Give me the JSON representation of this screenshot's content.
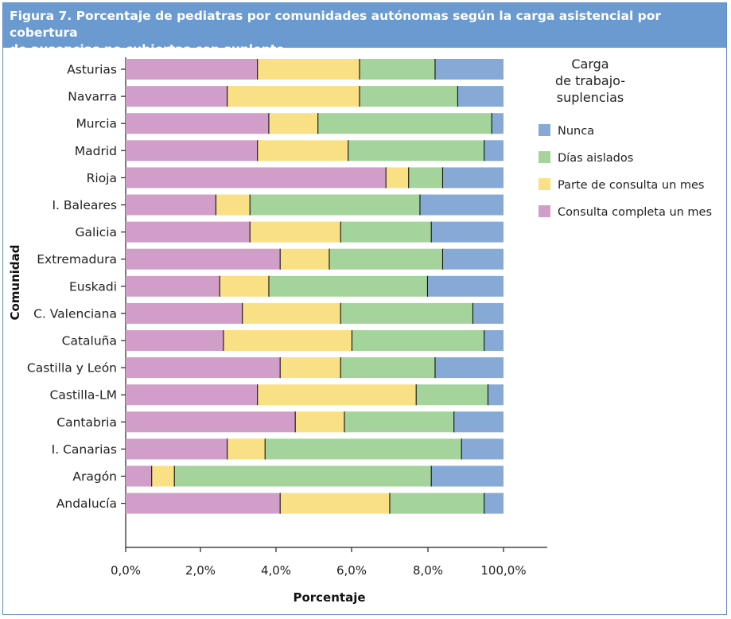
{
  "chart_data": {
    "type": "bar",
    "orientation": "horizontal",
    "stacked": true,
    "title": "Figura 7.  Porcentaje de pediatras por comunidades autónomas según la carga asistencial por cobertura de ausencias no cubiertas con suplente",
    "title_lines": [
      "Figura 7.  Porcentaje de pediatras por comunidades autónomas según la carga asistencial por cobertura",
      "de ausencias no cubiertas con suplente"
    ],
    "xlabel": "Porcentaje",
    "ylabel": "Comunidad",
    "xlim": [
      0,
      100
    ],
    "xticks": [
      "0,0%",
      "2,0%",
      "4,0%",
      "6,0%",
      "8,0%",
      "100,0%"
    ],
    "legend_title_lines": [
      "Carga",
      "de trabajo-",
      "suplencias"
    ],
    "categories": [
      "Asturias",
      "Navarra",
      "Murcia",
      "Madrid",
      "Rioja",
      "I. Baleares",
      "Galicia",
      "Extremadura",
      "Euskadi",
      "C. Valenciana",
      "Cataluña",
      "Castilla y León",
      "Castilla-LM",
      "Cantabria",
      "I. Canarias",
      "Aragón",
      "Andalucía"
    ],
    "series": [
      {
        "name": "Consulta completa un mes",
        "color": "#d09ec8",
        "values": [
          35,
          27,
          38,
          35,
          69,
          24,
          33,
          41,
          25,
          31,
          26,
          41,
          35,
          45,
          27,
          7,
          41
        ]
      },
      {
        "name": "Parte de consulta un mes",
        "color": "#fae085",
        "values": [
          27,
          35,
          13,
          24,
          6,
          9,
          24,
          13,
          13,
          26,
          34,
          16,
          42,
          13,
          10,
          6,
          29
        ]
      },
      {
        "name": "Días aislados",
        "color": "#a5d39c",
        "values": [
          20,
          26,
          46,
          36,
          9,
          45,
          24,
          30,
          42,
          35,
          35,
          25,
          19,
          29,
          52,
          68,
          25
        ]
      },
      {
        "name": "Nunca",
        "color": "#86aad5",
        "values": [
          18,
          12,
          3,
          5,
          16,
          22,
          19,
          16,
          20,
          8,
          5,
          18,
          4,
          13,
          11,
          19,
          5
        ]
      }
    ],
    "legend_order": [
      "Nunca",
      "Días aislados",
      "Parte de consulta un mes",
      "Consulta completa un mes"
    ]
  }
}
